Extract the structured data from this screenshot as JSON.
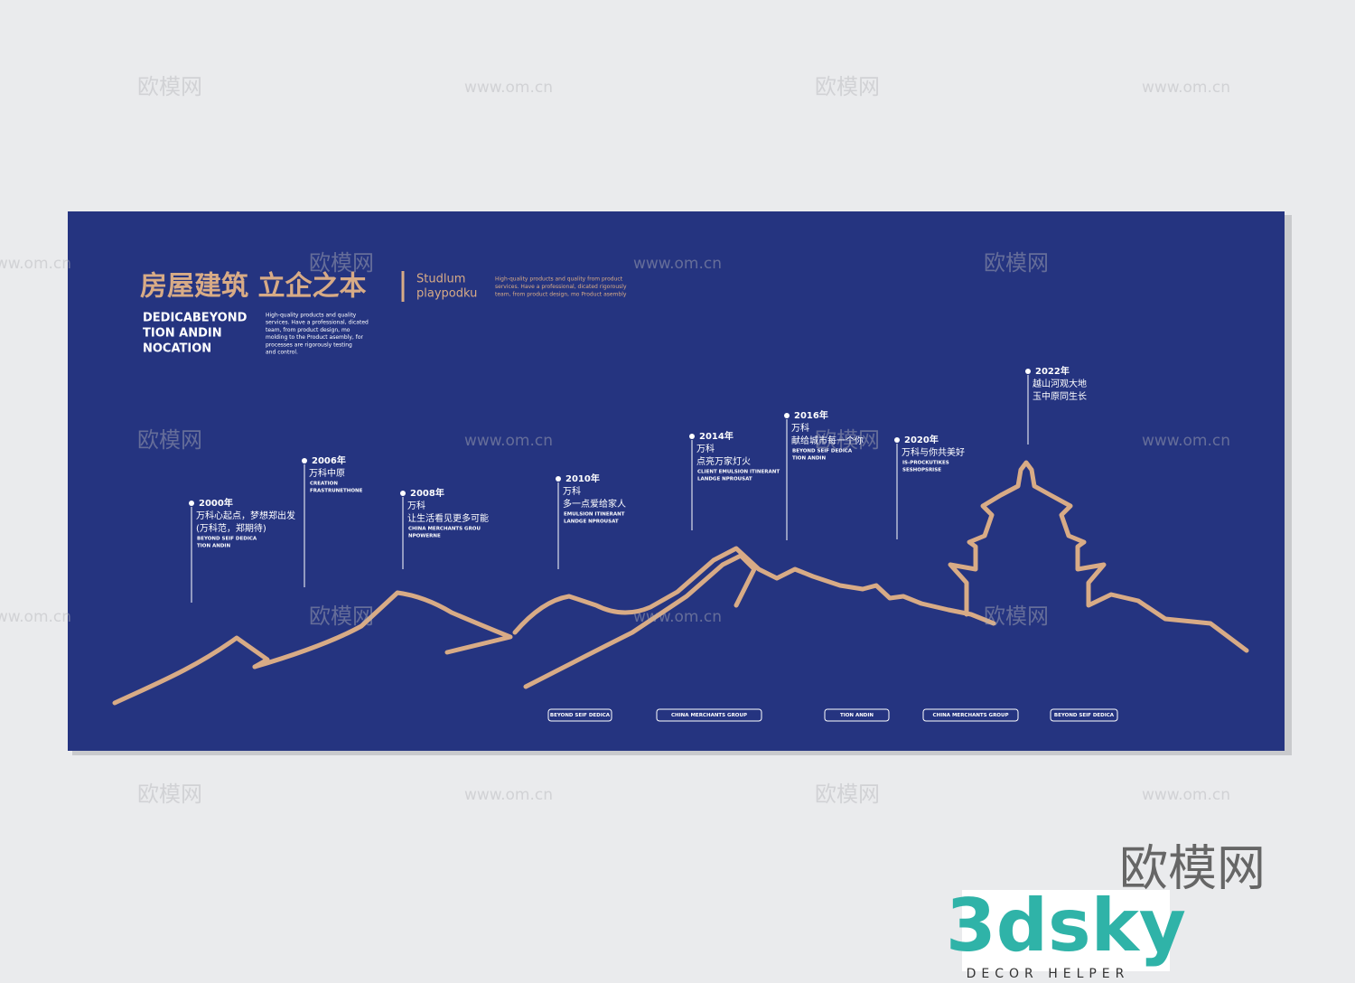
{
  "header": {
    "title": "房屋建筑  立企之本",
    "side_title": [
      "Studlum",
      "playpodku"
    ],
    "side_text": [
      "High-quality products and quality from product",
      "services. Have a professional, dicated rigorously",
      "team, from product design, mo Product asembly"
    ],
    "subtitle": [
      "DEDICABEYOND",
      "TION ANDIN",
      "NOCATION"
    ],
    "intro": [
      "High-quality products and quality",
      "services. Have a professional, dicated",
      "team, from product design, mo",
      "molding to the Product asembly, for",
      "processes are rigorously testing",
      "and control."
    ]
  },
  "timeline": [
    {
      "year": "2000年",
      "lines": [
        "万科心起点，梦想郑出发",
        "(万科范，郑期待)"
      ],
      "notes": [
        "BEYOND SEIF DEDICA",
        "TION ANDIN"
      ]
    },
    {
      "year": "2006年",
      "lines": [
        "万科中原"
      ],
      "notes": [
        "CREATION",
        "FRASTRUNETHONE"
      ]
    },
    {
      "year": "2008年",
      "lines": [
        "万科",
        "让生活看见更多可能"
      ],
      "notes": [
        "CHINA MERCHANTS GROU",
        "NPOWERNE"
      ]
    },
    {
      "year": "2010年",
      "lines": [
        "万科",
        "多一点爱给家人"
      ],
      "notes": [
        "EMULSION ITINERANT",
        "LANDGE NPROUSAT"
      ]
    },
    {
      "year": "2014年",
      "lines": [
        "万科",
        "点亮万家灯火"
      ],
      "notes": [
        "CLIENT EMULSION ITINERANT",
        "LANDGE NPROUSAT"
      ]
    },
    {
      "year": "2016年",
      "lines": [
        "万科",
        "献给城市每一个你"
      ],
      "notes": [
        "BEYOND SEIF DEDICA",
        "TION ANDIN"
      ]
    },
    {
      "year": "2020年",
      "lines": [
        "万科与你共美好"
      ],
      "notes": [
        "IS-PROCKUTIKES",
        "SESHOPSRISE"
      ]
    },
    {
      "year": "2022年",
      "lines": [
        "越山河观大地",
        "玉中原同生长"
      ],
      "notes": []
    }
  ],
  "tags": [
    "BEYOND SEIF DEDICA",
    "CHINA MERCHANTS GROUP",
    "TION ANDIN",
    "CHINA MERCHANTS GROUP",
    "BEYOND SEIF DEDICA"
  ],
  "watermarks": [
    "欧模网",
    "www.om.cn"
  ],
  "logo": {
    "site": "欧模网",
    "brand": "3dsky",
    "tagline": "DECOR HELPER"
  }
}
